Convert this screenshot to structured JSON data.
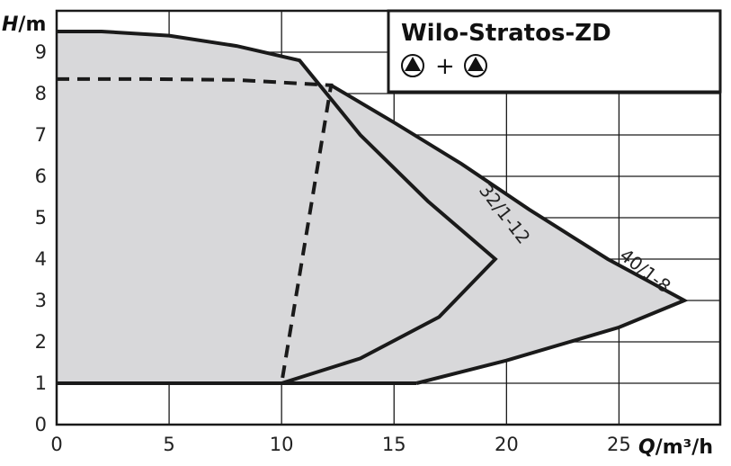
{
  "chart_data": {
    "type": "area",
    "title": "Wilo-Stratos-ZD",
    "title_symbol": "▲ + ▲",
    "xlabel_var": "Q",
    "xlabel_unit": "/m³/h",
    "ylabel_var": "H",
    "ylabel_unit": "/m",
    "xlim": [
      0,
      29.5
    ],
    "ylim": [
      0,
      10
    ],
    "x_ticks": [
      "0",
      "5",
      "10",
      "15",
      "20",
      "25"
    ],
    "y_ticks": [
      "0",
      "1",
      "2",
      "3",
      "4",
      "5",
      "6",
      "7",
      "8",
      "9"
    ],
    "grid": true,
    "colors": {
      "fill": "#d8d8da",
      "line": "#1a1a1a",
      "grid": "#1a1a1a"
    },
    "series": [
      {
        "name": "32/1-12",
        "outline": [
          [
            0,
            9.5
          ],
          [
            2,
            9.5
          ],
          [
            5,
            9.4
          ],
          [
            8,
            9.15
          ],
          [
            10.8,
            8.8
          ],
          [
            13.5,
            7.0
          ],
          [
            16.5,
            5.4
          ],
          [
            19.5,
            4.0
          ],
          [
            17,
            2.6
          ],
          [
            13.5,
            1.6
          ],
          [
            10,
            1.0
          ],
          [
            0,
            1.0
          ]
        ],
        "label_pos": [
          19.7,
          5.0
        ]
      },
      {
        "name": "40/1-8",
        "outline": [
          [
            0,
            8.35
          ],
          [
            4,
            8.35
          ],
          [
            8,
            8.33
          ],
          [
            12.2,
            8.2
          ],
          [
            15,
            7.3
          ],
          [
            18,
            6.3
          ],
          [
            21,
            5.2
          ],
          [
            24.5,
            4.0
          ],
          [
            27.9,
            3.0
          ],
          [
            25,
            2.35
          ],
          [
            20,
            1.55
          ],
          [
            16,
            1.0
          ],
          [
            10,
            1.0
          ]
        ],
        "dashed_until": 12.2,
        "label_pos": [
          26,
          3.6
        ]
      }
    ]
  }
}
